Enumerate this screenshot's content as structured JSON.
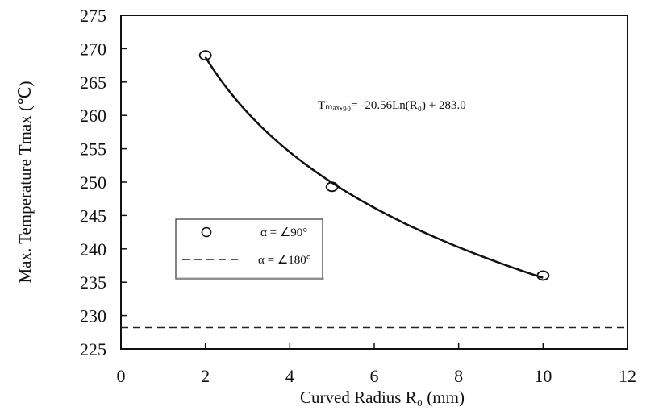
{
  "chart_data": {
    "type": "scatter",
    "xlabel": "Curved Radius R₀ (mm)",
    "ylabel": "Max. Temperature Tmax (℃)",
    "xlim": [
      0,
      12
    ],
    "ylim": [
      225,
      275
    ],
    "xticks": [
      "0",
      "2",
      "4",
      "6",
      "8",
      "10",
      "12"
    ],
    "yticks": [
      "225",
      "230",
      "235",
      "240",
      "245",
      "250",
      "255",
      "260",
      "265",
      "270",
      "275"
    ],
    "grid": false,
    "legend_position": "center-left",
    "series": [
      {
        "name": "α = ∠90°",
        "marker": "open-circle",
        "x": [
          2,
          5,
          10
        ],
        "y": [
          269,
          249.3,
          236
        ]
      },
      {
        "name": "α = ∠180°",
        "style": "dashed",
        "y_constant": 228.2
      }
    ],
    "fit": {
      "label": "Tₘₐₓ,₉₀= -20.56Ln(R₀) + 283.0",
      "a": -20.56,
      "b": 283.0,
      "x_range": [
        2,
        10
      ]
    }
  }
}
